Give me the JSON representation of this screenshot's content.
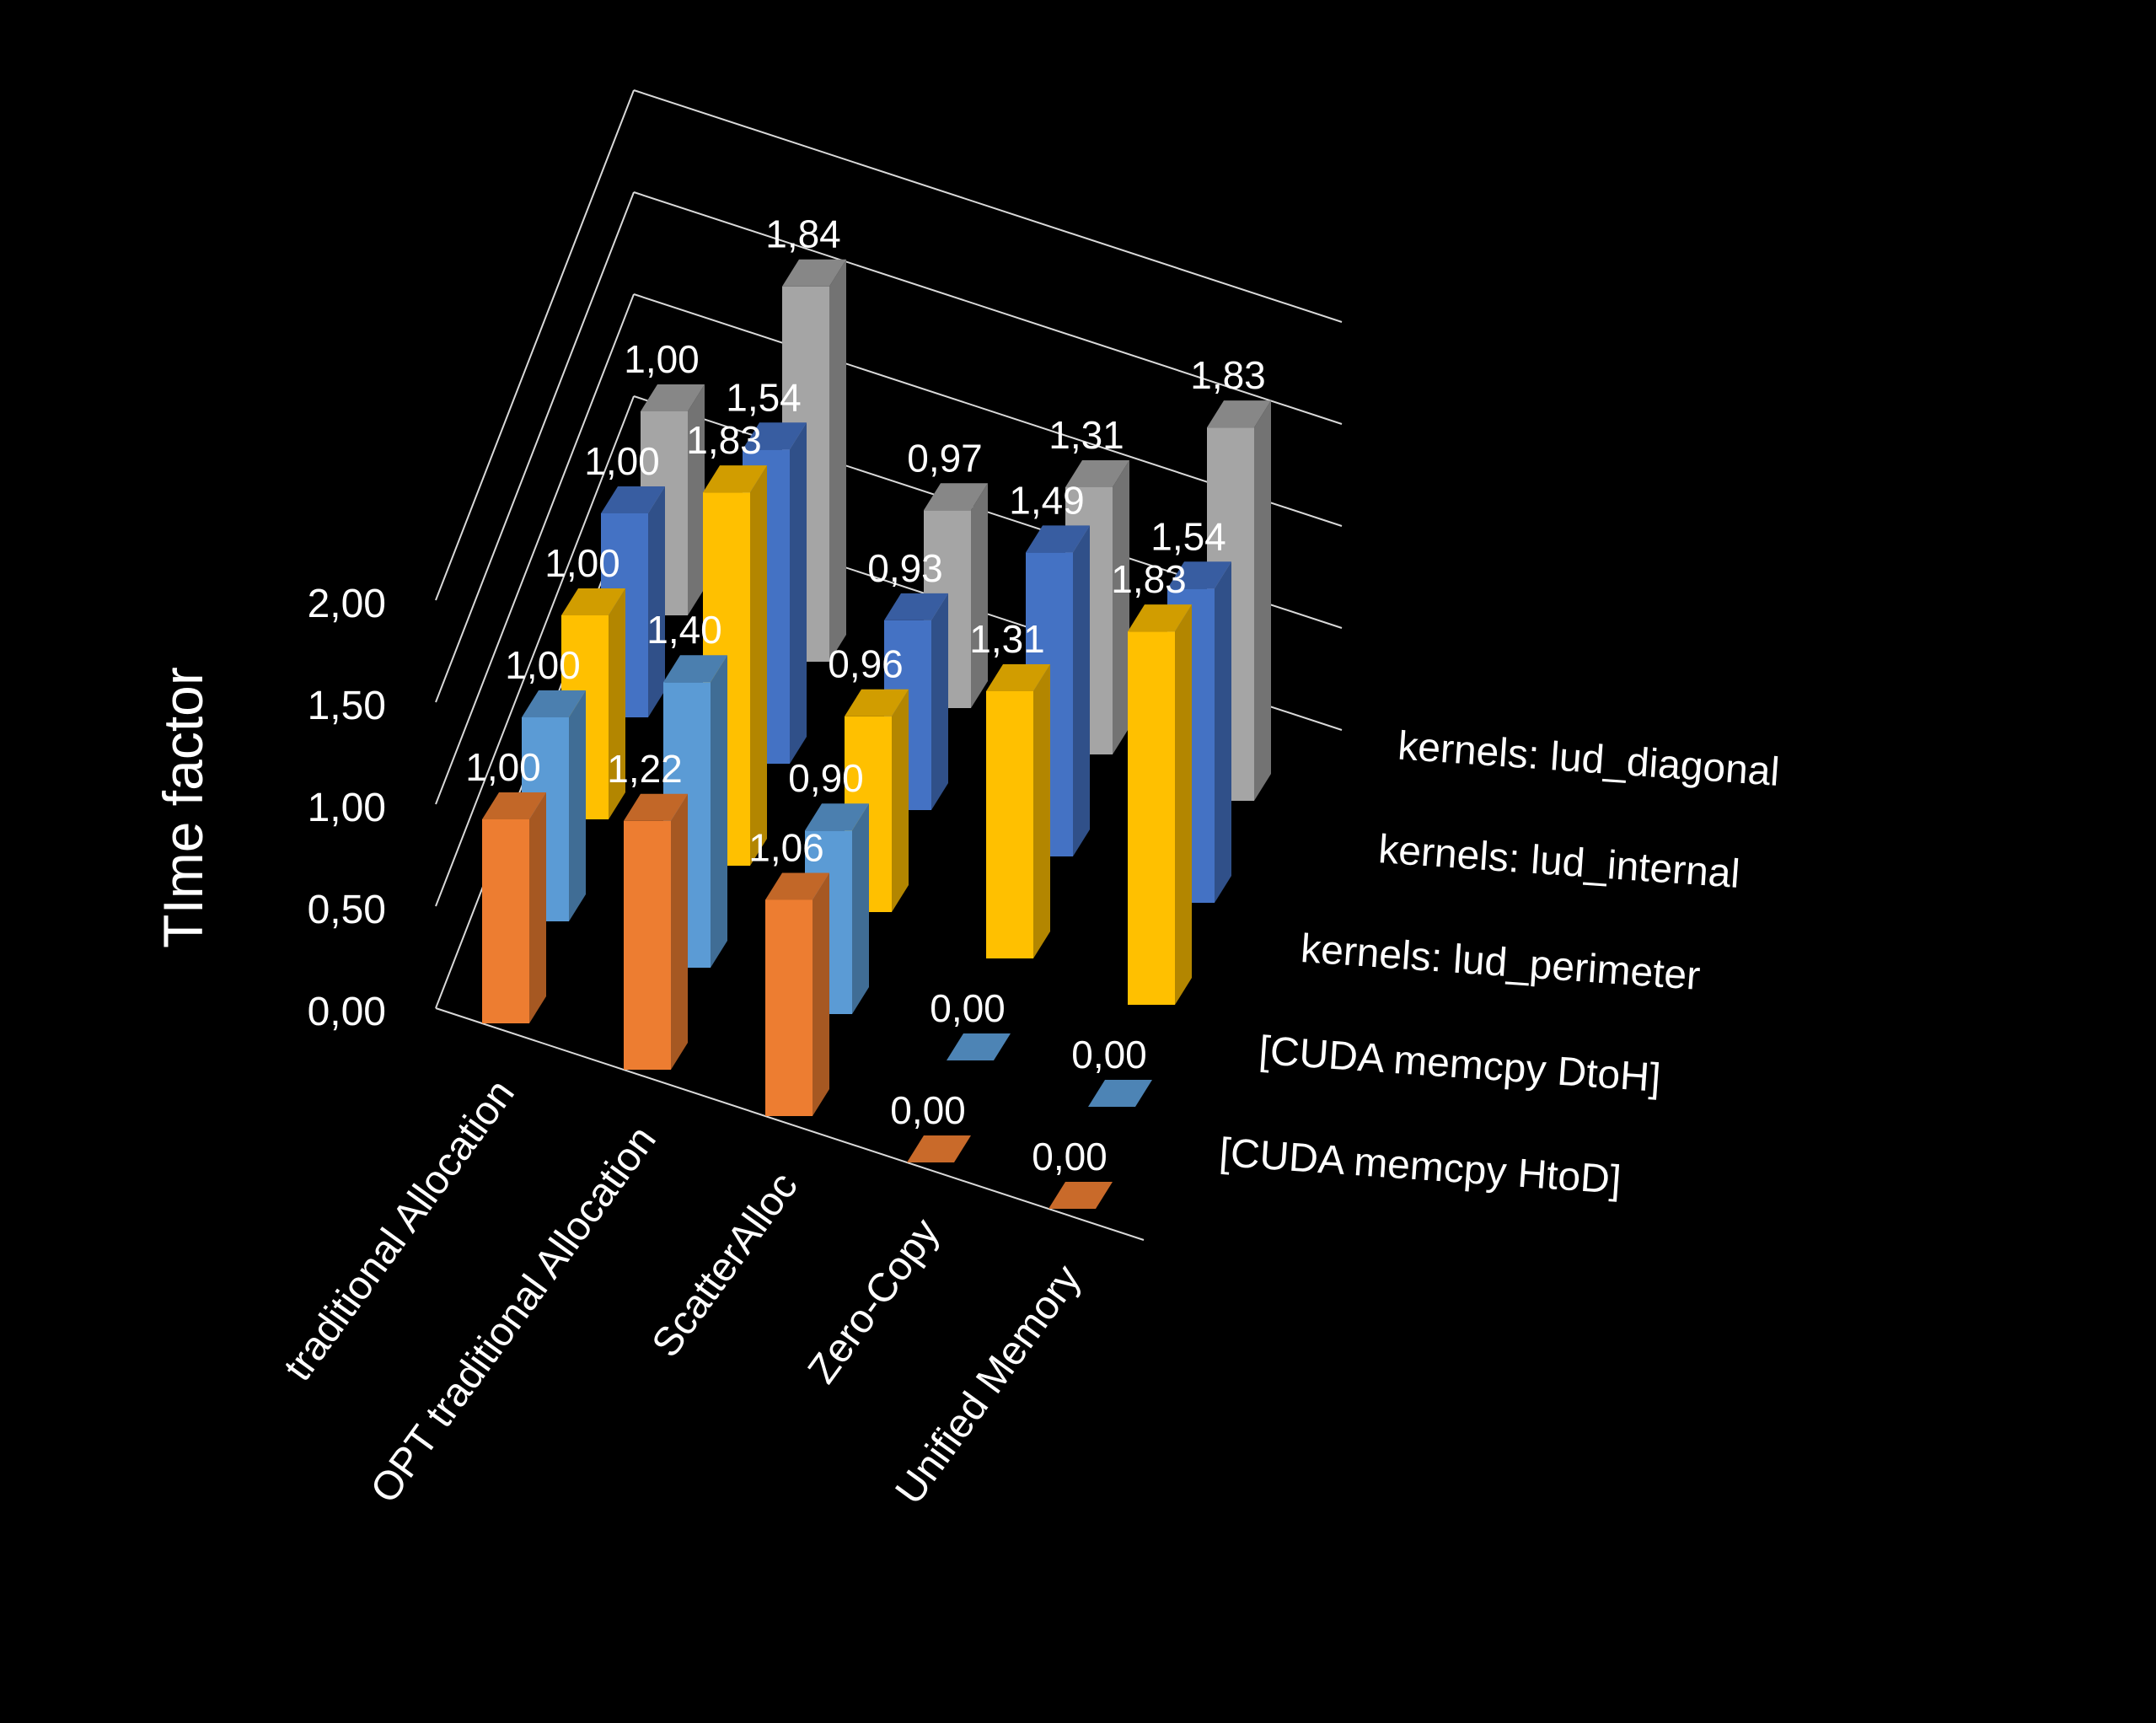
{
  "chart_data": {
    "type": "bar",
    "subtype": "3d-column",
    "ylabel": "TIme factor",
    "ylim": [
      0,
      2
    ],
    "y_ticks": [
      "0,00",
      "0,50",
      "1,00",
      "1,50",
      "2,00"
    ],
    "grid": true,
    "legend": "series labels printed along the right depth axis",
    "categories": [
      "traditional Allocation",
      "OPT traditional Allocation",
      "ScatterAlloc",
      "Zero-Copy",
      "Unified Memory"
    ],
    "series": [
      {
        "name": "[CUDA memcpy HtoD]",
        "color": "#ED7D31",
        "values": [
          1.0,
          1.22,
          1.06,
          0.0,
          0.0
        ],
        "labels": [
          "1,00",
          "1,22",
          "1,06",
          "0,00",
          "0,00"
        ]
      },
      {
        "name": "[CUDA memcpy DtoH]",
        "color": "#5B9BD5",
        "values": [
          1.0,
          1.4,
          0.9,
          0.0,
          0.0
        ],
        "labels": [
          "1,00",
          "1,40",
          "0,90",
          "0,00",
          "0,00"
        ]
      },
      {
        "name": "kernels: lud_perimeter",
        "color": "#FFC000",
        "values": [
          1.0,
          1.83,
          0.96,
          1.31,
          1.83
        ],
        "labels": [
          "1,00",
          "1,83",
          "0,96",
          "1,31",
          "1,83"
        ]
      },
      {
        "name": "kernels: lud_internal",
        "color": "#4472C4",
        "values": [
          1.0,
          1.54,
          0.93,
          1.49,
          1.54
        ],
        "labels": [
          "1,00",
          "1,54",
          "0,93",
          "1,49",
          "1,54"
        ]
      },
      {
        "name": "kernels: lud_diagonal",
        "color": "#A5A5A5",
        "values": [
          1.0,
          1.84,
          0.97,
          1.31,
          1.83
        ],
        "labels": [
          "1,00",
          "1,84",
          "0,97",
          "1,31",
          "1,83"
        ]
      }
    ]
  }
}
